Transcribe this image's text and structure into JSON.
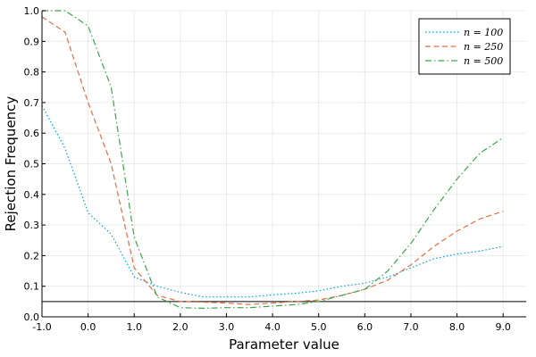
{
  "chart_data": {
    "type": "line",
    "title": "",
    "xlabel": "Parameter value",
    "ylabel": "Rejection Frequency",
    "xlim": [
      -1.0,
      9.5
    ],
    "ylim": [
      0.0,
      1.0
    ],
    "x_ticks": [
      -1.0,
      0.0,
      1.0,
      2.0,
      3.0,
      4.0,
      5.0,
      6.0,
      7.0,
      8.0,
      9.0
    ],
    "x_tick_labels": [
      "-1.0",
      "0.0",
      "1.0",
      "2.0",
      "3.0",
      "4.0",
      "5.0",
      "6.0",
      "7.0",
      "8.0",
      "9.0"
    ],
    "y_ticks": [
      0.0,
      0.1,
      0.2,
      0.3,
      0.4,
      0.5,
      0.6,
      0.7,
      0.8,
      0.9,
      1.0
    ],
    "y_tick_labels": [
      "0.0",
      "0.1",
      "0.2",
      "0.3",
      "0.4",
      "0.5",
      "0.6",
      "0.7",
      "0.8",
      "0.9",
      "1.0"
    ],
    "grid": true,
    "legend_position": "top-right",
    "reference_line": 0.05,
    "x": [
      -1.0,
      -0.5,
      0.0,
      0.5,
      1.0,
      1.5,
      2.0,
      2.5,
      3.0,
      3.5,
      4.0,
      4.5,
      5.0,
      5.5,
      6.0,
      6.5,
      7.0,
      7.5,
      8.0,
      8.5,
      9.0
    ],
    "series": [
      {
        "name": "n = 100",
        "color": "#009AFA",
        "dash": "dotted",
        "values": [
          0.69,
          0.55,
          0.34,
          0.27,
          0.13,
          0.1,
          0.08,
          0.065,
          0.065,
          0.065,
          0.072,
          0.077,
          0.085,
          0.1,
          0.11,
          0.13,
          0.16,
          0.19,
          0.205,
          0.215,
          0.23
        ]
      },
      {
        "name": "n = 250",
        "color": "#E36F47",
        "dash": "dashed",
        "values": [
          0.98,
          0.93,
          0.7,
          0.5,
          0.16,
          0.07,
          0.05,
          0.048,
          0.045,
          0.04,
          0.045,
          0.05,
          0.055,
          0.07,
          0.09,
          0.12,
          0.17,
          0.23,
          0.28,
          0.32,
          0.345
        ]
      },
      {
        "name": "n = 500",
        "color": "#3EA44E",
        "dash": "dashdot",
        "values": [
          1.0,
          1.0,
          0.95,
          0.75,
          0.26,
          0.065,
          0.03,
          0.028,
          0.03,
          0.03,
          0.035,
          0.04,
          0.05,
          0.07,
          0.09,
          0.15,
          0.24,
          0.35,
          0.45,
          0.535,
          0.585
        ]
      }
    ]
  }
}
